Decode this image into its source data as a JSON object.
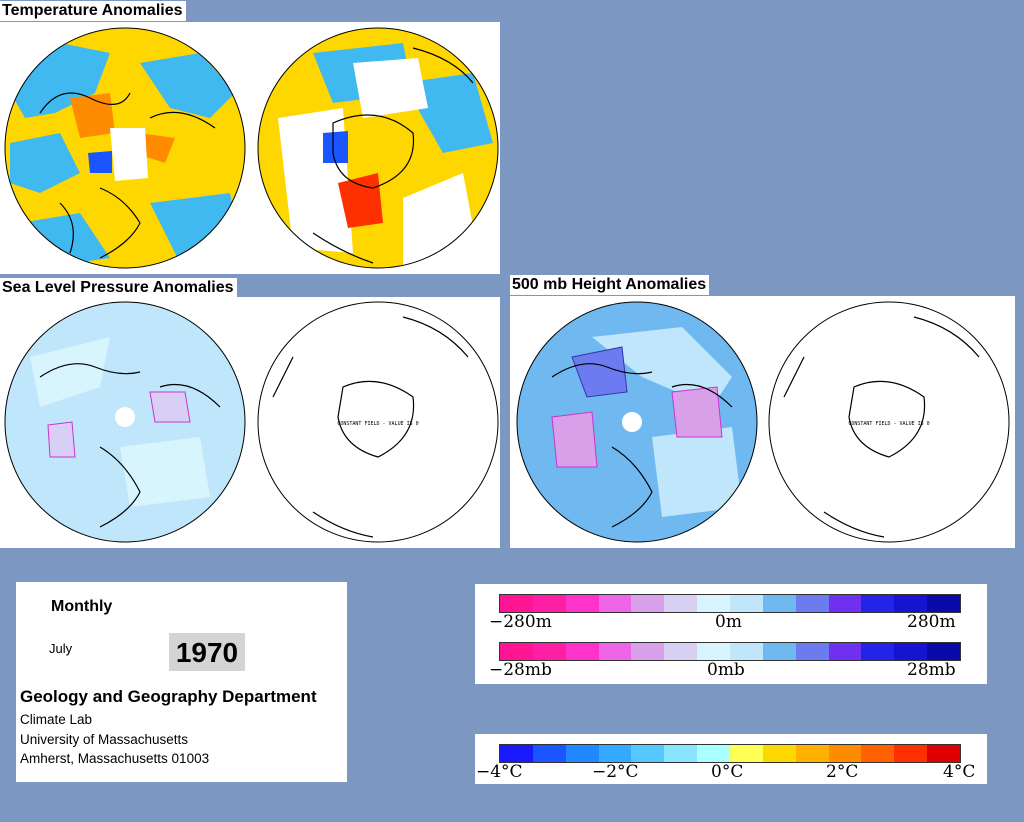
{
  "titles": {
    "temperature": "Temperature Anomalies",
    "slp": "Sea Level Pressure Anomalies",
    "height500": "500 mb Height Anomalies"
  },
  "map_notes": {
    "constant_field": "CONSTANT FIELD - VALUE IS 0"
  },
  "info": {
    "period": "Monthly",
    "month": "July",
    "year": "1970",
    "department": "Geology and Geography Department",
    "lab": "Climate Lab",
    "university": "University of Massachusetts",
    "address": "Amherst, Massachusetts 01003"
  },
  "legends": {
    "height": {
      "min": "−280m",
      "mid": "0m",
      "max": "280m"
    },
    "pressure": {
      "min": "−28mb",
      "mid": "0mb",
      "max": "28mb"
    },
    "temperature": {
      "t0": "−4°C",
      "t1": "−2°C",
      "t2": "0°C",
      "t3": "2°C",
      "t4": "4°C"
    }
  },
  "colors": {
    "background": "#7b97c2",
    "anomaly_scale": [
      "#ff1493",
      "#ff1fa5",
      "#ff33cc",
      "#ee66e6",
      "#d8a0e8",
      "#d8d0f4",
      "#d8f4fc",
      "#bfe6fa",
      "#70b8f0",
      "#6c7cf0",
      "#6f30f0",
      "#2424e8",
      "#1515d0",
      "#0a0aa8"
    ],
    "temperature_scale": [
      "#1a1aff",
      "#1a55ff",
      "#2288ff",
      "#33aaff",
      "#55c8ff",
      "#88e4ff",
      "#aaffff",
      "#ffff55",
      "#ffd700",
      "#ffb000",
      "#ff8c00",
      "#ff6000",
      "#ff3000",
      "#e00000"
    ]
  }
}
